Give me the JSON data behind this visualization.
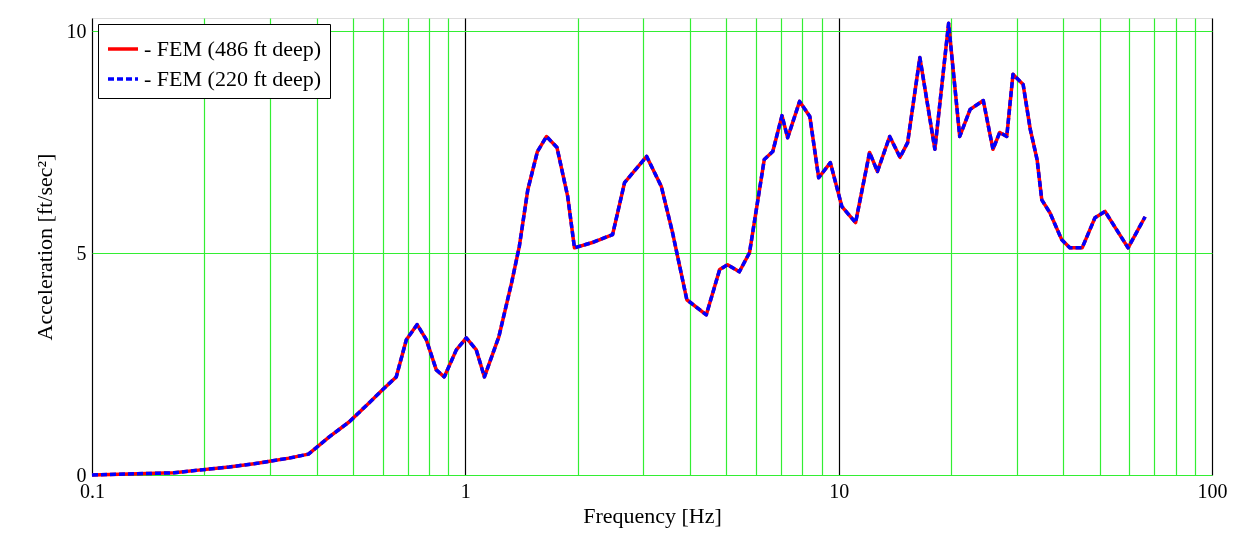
{
  "chart_data": {
    "type": "line",
    "xlabel": "Frequency [Hz]",
    "ylabel": "Acceleration [ft/sec²]",
    "x": [
      0.1,
      0.166,
      0.193,
      0.233,
      0.28,
      0.337,
      0.38,
      0.432,
      0.489,
      0.553,
      0.6,
      0.653,
      0.695,
      0.743,
      0.786,
      0.836,
      0.878,
      0.946,
      1.006,
      1.07,
      1.125,
      1.23,
      1.33,
      1.395,
      1.47,
      1.56,
      1.65,
      1.76,
      1.88,
      1.96,
      2.19,
      2.48,
      2.67,
      3.06,
      3.35,
      3.59,
      3.92,
      4.42,
      4.8,
      5.04,
      5.42,
      5.77,
      6.32,
      6.66,
      7.05,
      7.3,
      7.86,
      8.37,
      8.84,
      9.5,
      10.2,
      11.1,
      12.1,
      12.7,
      13.7,
      14.6,
      15.3,
      16.5,
      18.1,
      19.7,
      21.1,
      22.5,
      24.4,
      25.9,
      27.0,
      28.2,
      29.3,
      31.2,
      32.6,
      34.0,
      35.0,
      36.8,
      39.6,
      41.6,
      44.9,
      48.6,
      51.7,
      59.6,
      66.2
    ],
    "series": [
      {
        "name": "- FEM (486 ft deep)",
        "color": "#ff0000",
        "line_style": "solid",
        "values": [
          0,
          0.05,
          0.11,
          0.18,
          0.27,
          0.38,
          0.47,
          0.86,
          1.2,
          1.63,
          1.92,
          2.21,
          3.05,
          3.39,
          3.05,
          2.37,
          2.21,
          2.82,
          3.09,
          2.82,
          2.21,
          3.12,
          4.33,
          5.15,
          6.43,
          7.29,
          7.63,
          7.38,
          6.28,
          5.12,
          5.24,
          5.42,
          6.59,
          7.18,
          6.5,
          5.46,
          3.95,
          3.61,
          4.63,
          4.74,
          4.58,
          5.01,
          7.11,
          7.29,
          8.1,
          7.6,
          8.42,
          8.08,
          6.7,
          7.04,
          6.05,
          5.69,
          7.27,
          6.84,
          7.63,
          7.16,
          7.49,
          9.41,
          7.34,
          10.18,
          7.63,
          8.24,
          8.44,
          7.34,
          7.72,
          7.63,
          9.03,
          8.8,
          7.79,
          7.11,
          6.2,
          5.91,
          5.3,
          5.12,
          5.12,
          5.8,
          5.94,
          5.12,
          5.82
        ]
      },
      {
        "name": "- FEM (220 ft deep)",
        "color": "#0000ff",
        "line_style": "dashed",
        "values": [
          0,
          0.05,
          0.11,
          0.18,
          0.27,
          0.38,
          0.47,
          0.86,
          1.2,
          1.63,
          1.92,
          2.21,
          3.05,
          3.39,
          3.05,
          2.37,
          2.21,
          2.82,
          3.09,
          2.82,
          2.21,
          3.12,
          4.33,
          5.15,
          6.43,
          7.29,
          7.63,
          7.38,
          6.28,
          5.12,
          5.24,
          5.42,
          6.59,
          7.18,
          6.5,
          5.46,
          3.95,
          3.61,
          4.63,
          4.74,
          4.58,
          5.01,
          7.11,
          7.29,
          8.1,
          7.6,
          8.42,
          8.08,
          6.7,
          7.04,
          6.05,
          5.69,
          7.27,
          6.84,
          7.63,
          7.16,
          7.49,
          9.41,
          7.34,
          10.18,
          7.63,
          8.24,
          8.44,
          7.34,
          7.72,
          7.63,
          9.03,
          8.8,
          7.79,
          7.11,
          6.2,
          5.91,
          5.3,
          5.12,
          5.12,
          5.8,
          5.94,
          5.12,
          5.82
        ]
      }
    ],
    "log": "x",
    "xlim": [
      0.1,
      100
    ],
    "ylim": [
      0,
      10.3
    ],
    "xticks": [
      0.1,
      {
        "value": 0.2,
        "label": null
      },
      {
        "value": 0.3,
        "label": null
      },
      {
        "value": 0.4,
        "label": null
      },
      {
        "value": 0.5,
        "label": null
      },
      {
        "value": 0.6,
        "label": null
      },
      {
        "value": 0.7,
        "label": null
      },
      {
        "value": 0.8,
        "label": null
      },
      {
        "value": 0.9,
        "label": null
      },
      1,
      {
        "value": 2,
        "label": null
      },
      {
        "value": 3,
        "label": null
      },
      {
        "value": 4,
        "label": null
      },
      {
        "value": 5,
        "label": null
      },
      {
        "value": 6,
        "label": null
      },
      {
        "value": 7,
        "label": null
      },
      {
        "value": 8,
        "label": null
      },
      {
        "value": 9,
        "label": null
      },
      10,
      {
        "value": 20,
        "label": null
      },
      {
        "value": 30,
        "label": null
      },
      {
        "value": 40,
        "label": null
      },
      {
        "value": 50,
        "label": null
      },
      {
        "value": 60,
        "label": null
      },
      {
        "value": 70,
        "label": null
      },
      {
        "value": 80,
        "label": null
      },
      {
        "value": 90,
        "label": null
      },
      100
    ],
    "yticks": [
      0,
      5,
      10
    ],
    "grid": true,
    "legend": "top left"
  }
}
